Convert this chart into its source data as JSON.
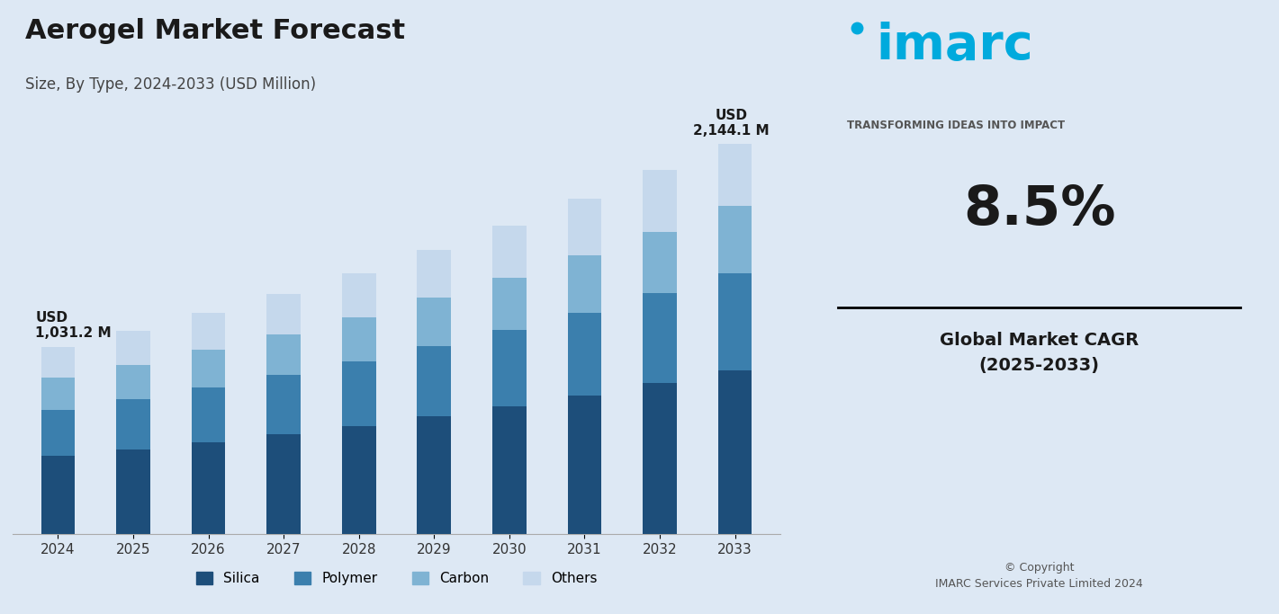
{
  "title": "Aerogel Market Forecast",
  "subtitle": "Size, By Type, 2024-2033 (USD Million)",
  "years": [
    2024,
    2025,
    2026,
    2027,
    2028,
    2029,
    2030,
    2031,
    2032,
    2033
  ],
  "silica": [
    430,
    465,
    505,
    548,
    595,
    648,
    704,
    764,
    830,
    900
  ],
  "polymer": [
    255,
    277,
    301,
    327,
    355,
    386,
    419,
    455,
    494,
    536
  ],
  "carbon": [
    175,
    190,
    207,
    225,
    244,
    265,
    288,
    312,
    339,
    368
  ],
  "others": [
    171,
    186,
    203,
    222,
    241,
    263,
    287,
    312,
    340,
    340
  ],
  "first_label": "USD\n1,031.2 M",
  "last_label": "USD\n2,144.1 M",
  "cagr": "8.5%",
  "cagr_label": "Global Market CAGR\n(2025-2033)",
  "color_silica": "#1d4e7a",
  "color_polymer": "#3b7fad",
  "color_carbon": "#7fb3d3",
  "color_others": "#c5d8ec",
  "bg_color": "#dde8f4",
  "chart_bg": "#dde8f4",
  "right_panel_bg": "#eef2f9",
  "legend_labels": [
    "Silica",
    "Polymer",
    "Carbon",
    "Others"
  ],
  "copyright": "© Copyright\nIMARC Services Private Limited 2024",
  "imarc_tagline": "TRANSFORMING IDEAS INTO IMPACT"
}
